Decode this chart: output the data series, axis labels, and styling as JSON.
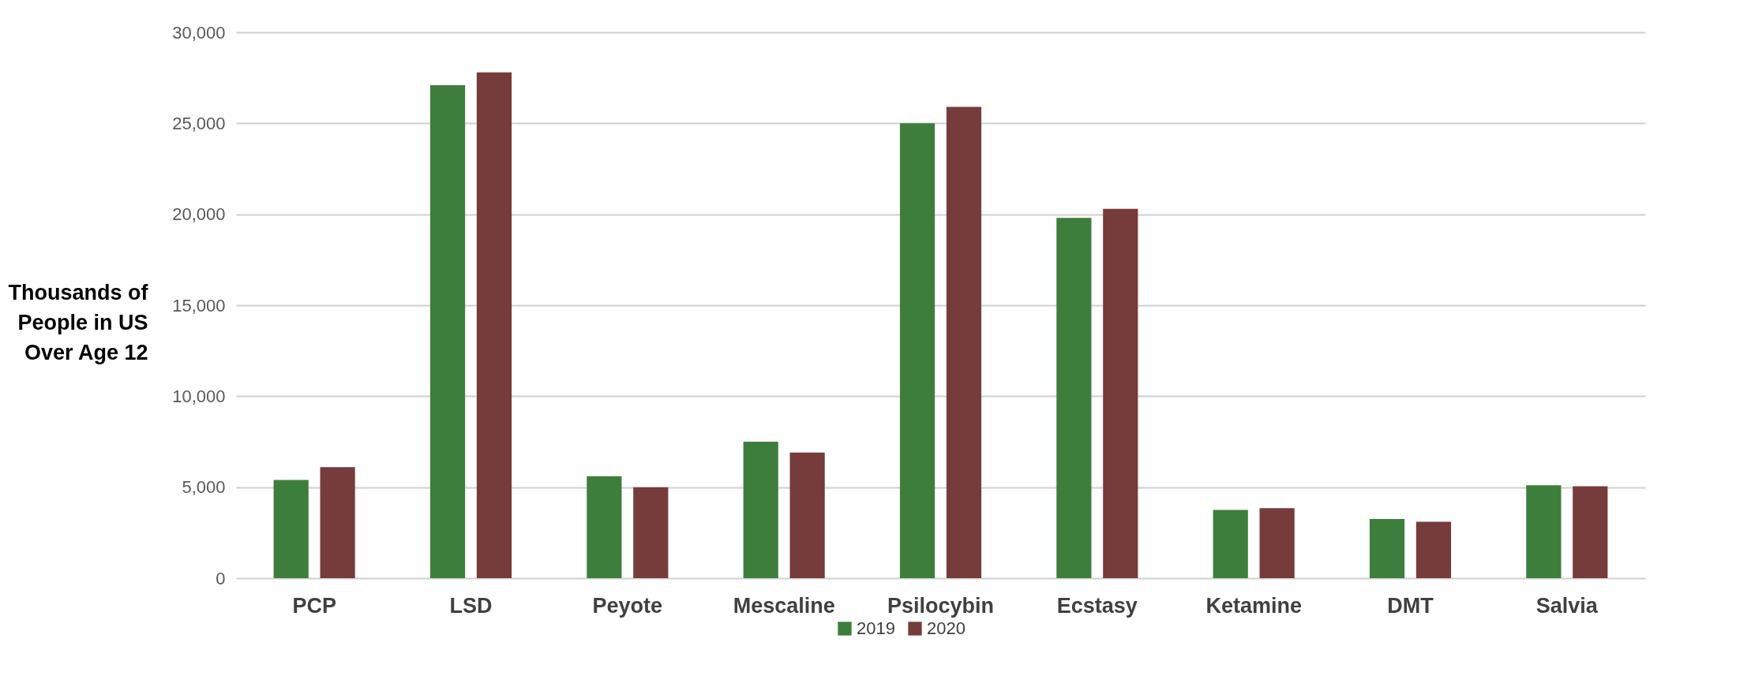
{
  "chart_data": {
    "type": "bar",
    "ylabel": "Thousands of\nPeople in US\nOver Age 12",
    "categories": [
      "PCP",
      "LSD",
      "Peyote",
      "Mescaline",
      "Psilocybin",
      "Ecstasy",
      "Ketamine",
      "DMT",
      "Salvia"
    ],
    "series": [
      {
        "name": "2019",
        "color": "#3e7e3c",
        "values": [
          5400,
          27100,
          5600,
          7500,
          25000,
          19800,
          3750,
          3250,
          5100
        ]
      },
      {
        "name": "2020",
        "color": "#763b3b",
        "values": [
          6100,
          27800,
          5000,
          6900,
          25900,
          20300,
          3850,
          3100,
          5050
        ]
      }
    ],
    "ylim": [
      0,
      30000
    ],
    "yticks": [
      0,
      {
        "value": 5000,
        "label": "5,000"
      },
      {
        "value": 10000,
        "label": "10,000"
      },
      {
        "value": 15000,
        "label": "15,000"
      },
      {
        "value": 20000,
        "label": "20,000"
      },
      {
        "value": 25000,
        "label": "25,000"
      },
      {
        "value": 30000,
        "label": "30,000"
      }
    ],
    "grid": "y",
    "legend": "bottom"
  }
}
